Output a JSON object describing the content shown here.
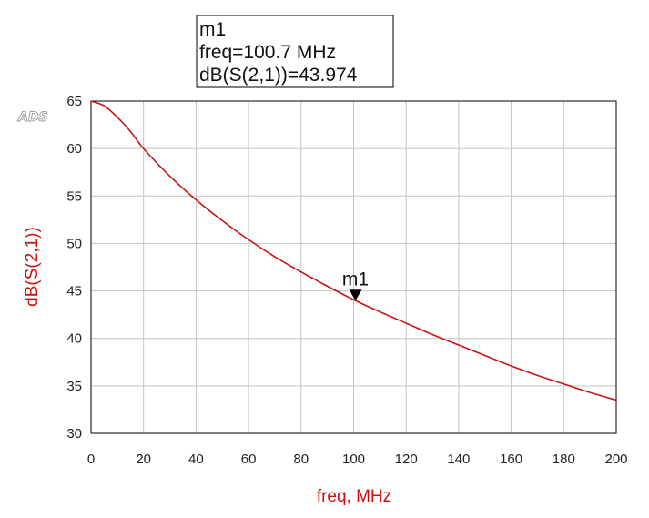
{
  "logo": "ADS",
  "marker": {
    "name": "m1",
    "freq_line": "freq=100.7 MHz",
    "value_line": "dB(S(2,1))=43.974",
    "x": 100.7,
    "y": 43.974
  },
  "colors": {
    "trace": "#c81414",
    "axis_label": "#cc1111",
    "grid": "#c4c4c4",
    "frame": "#000000"
  },
  "chart_data": {
    "type": "line",
    "title": "",
    "xlabel": "freq, MHz",
    "ylabel": "dB(S(2,1))",
    "xlim": [
      0,
      200
    ],
    "ylim": [
      30,
      65
    ],
    "xticks": [
      "0",
      "20",
      "40",
      "60",
      "80",
      "100",
      "120",
      "140",
      "160",
      "180",
      "200"
    ],
    "yticks": [
      "30",
      "35",
      "40",
      "45",
      "50",
      "55",
      "60",
      "65"
    ],
    "grid": true,
    "legend": "none",
    "series": [
      {
        "x": [
          0,
          5,
          10,
          15,
          20,
          30,
          40,
          50,
          60,
          70,
          80,
          90,
          100.7,
          110,
          120,
          130,
          140,
          150,
          160,
          170,
          180,
          190,
          200
        ],
        "y": [
          65.0,
          64.5,
          63.3,
          61.8,
          60.0,
          57.1,
          54.6,
          52.4,
          50.4,
          48.6,
          47.0,
          45.5,
          43.974,
          42.8,
          41.6,
          40.4,
          39.3,
          38.2,
          37.1,
          36.1,
          35.2,
          34.3,
          33.5
        ]
      }
    ]
  }
}
